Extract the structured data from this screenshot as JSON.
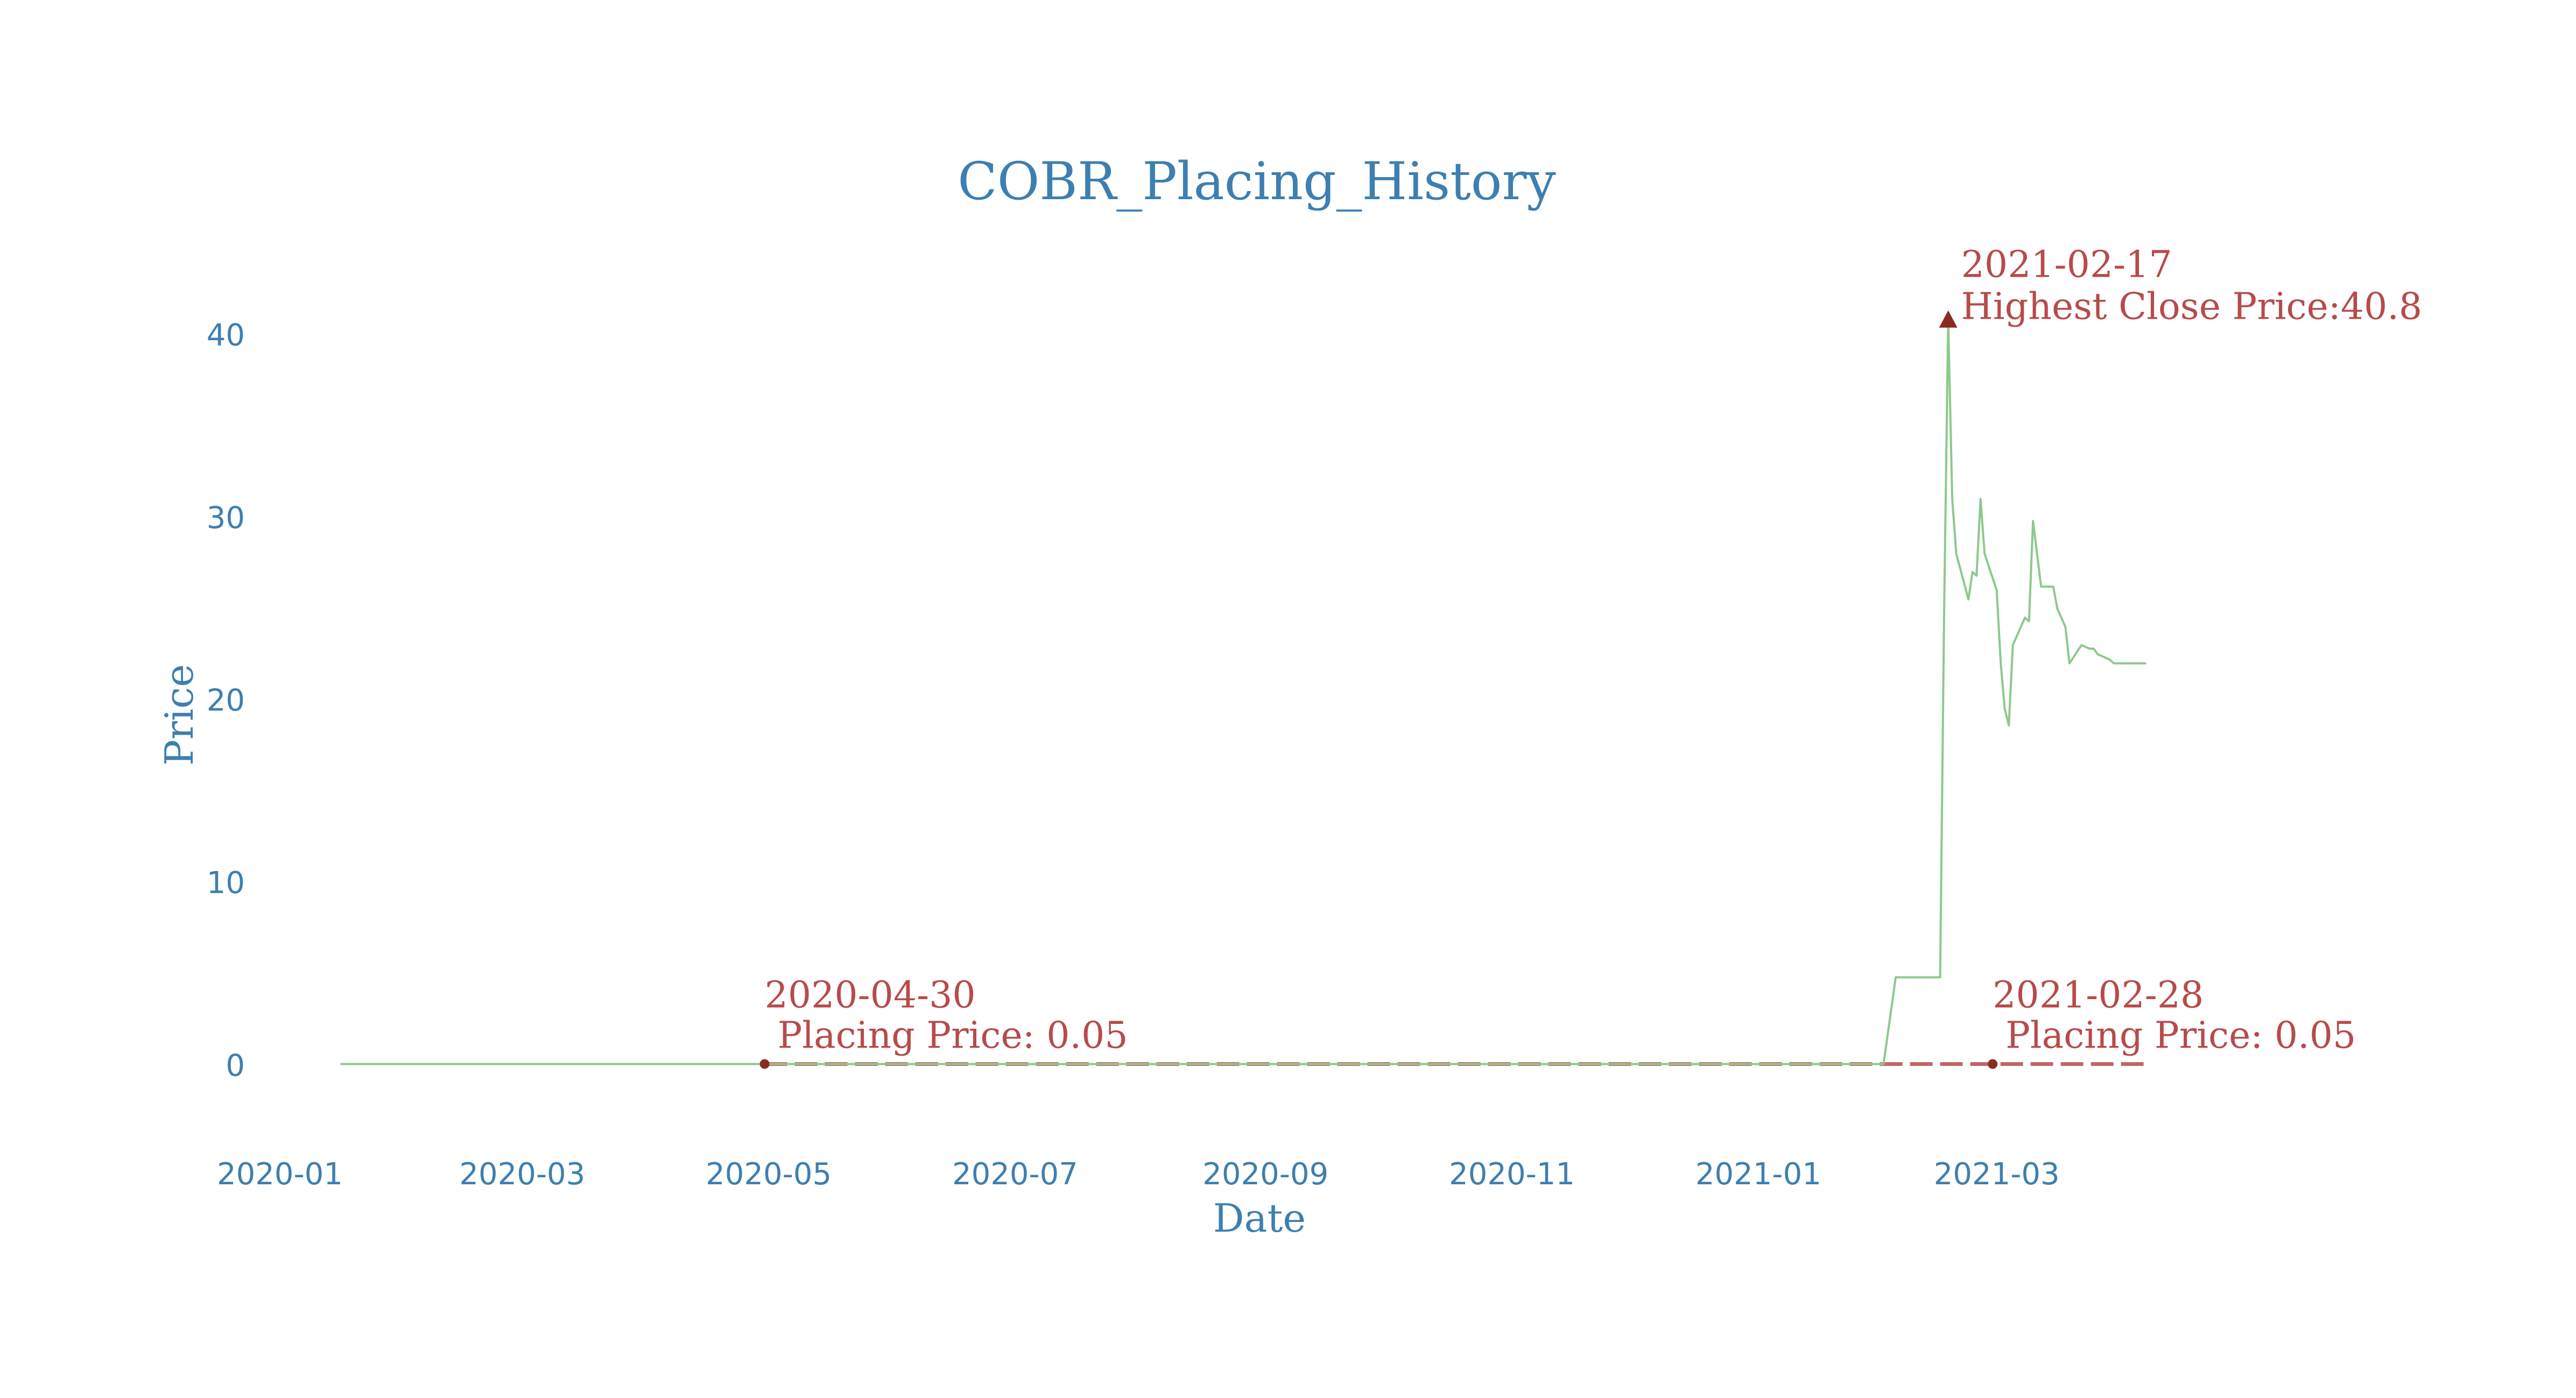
{
  "chart_data": {
    "type": "line",
    "title": "COBR_Placing_History",
    "xlabel": "Date",
    "ylabel": "Price",
    "x_ticks": [
      "2020-01",
      "2020-03",
      "2020-05",
      "2020-07",
      "2020-09",
      "2020-11",
      "2021-01",
      "2021-03"
    ],
    "y_ticks": [
      0,
      10,
      20,
      30,
      40
    ],
    "xlim": [
      "2020-01-01",
      "2021-04-30"
    ],
    "ylim": [
      -3,
      43
    ],
    "grid": false,
    "colors": {
      "price_line": "#8cc98c",
      "placing": "#b84a4a",
      "marker": "#8b2a20",
      "axis_text": "#3d7fb0"
    },
    "series": [
      {
        "x": [
          "2020-01-16",
          "2020-06-01",
          "2020-10-01",
          "2021-01-15",
          "2021-02-01",
          "2021-02-04",
          "2021-02-09",
          "2021-02-11",
          "2021-02-12",
          "2021-02-15",
          "2021-02-16",
          "2021-02-17",
          "2021-02-18",
          "2021-02-19",
          "2021-02-22",
          "2021-02-23",
          "2021-02-24",
          "2021-02-25",
          "2021-02-26",
          "2021-03-01",
          "2021-03-02",
          "2021-03-03",
          "2021-03-04",
          "2021-03-05",
          "2021-03-08",
          "2021-03-09",
          "2021-03-10",
          "2021-03-11",
          "2021-03-12",
          "2021-03-15",
          "2021-03-16",
          "2021-03-17",
          "2021-03-18",
          "2021-03-19",
          "2021-03-22",
          "2021-03-23",
          "2021-03-24",
          "2021-03-25",
          "2021-03-26",
          "2021-03-29",
          "2021-03-30",
          "2021-03-31",
          "2021-04-01",
          "2021-04-06",
          "2021-04-07"
        ],
        "y": [
          0.05,
          0.05,
          0.05,
          0.05,
          0.05,
          4.8,
          4.8,
          4.8,
          4.8,
          4.8,
          25.0,
          40.8,
          31.0,
          28.0,
          25.5,
          27.0,
          26.8,
          31.0,
          28.0,
          26.0,
          22.0,
          19.5,
          18.6,
          23.0,
          24.5,
          24.3,
          29.8,
          28.0,
          26.2,
          26.2,
          25.0,
          24.5,
          24.0,
          22.0,
          23.0,
          22.9,
          22.8,
          22.8,
          22.5,
          22.2,
          22.0,
          22.0,
          22.0,
          22.0,
          22.0
        ]
      }
    ],
    "placing": {
      "start": "2020-04-30",
      "end": "2021-04-07",
      "price": 0.05
    },
    "annotations": [
      {
        "date": "2020-04-30",
        "value": 0.05,
        "line1": "2020-04-30",
        "line2": "Placing Price: 0.05"
      },
      {
        "date": "2021-02-28",
        "value": 0.05,
        "line1": "2021-02-28",
        "line2": "Placing Price: 0.05"
      },
      {
        "date": "2021-02-17",
        "value": 40.8,
        "line1": "2021-02-17",
        "line2": "Highest Close Price:40.8"
      }
    ]
  }
}
